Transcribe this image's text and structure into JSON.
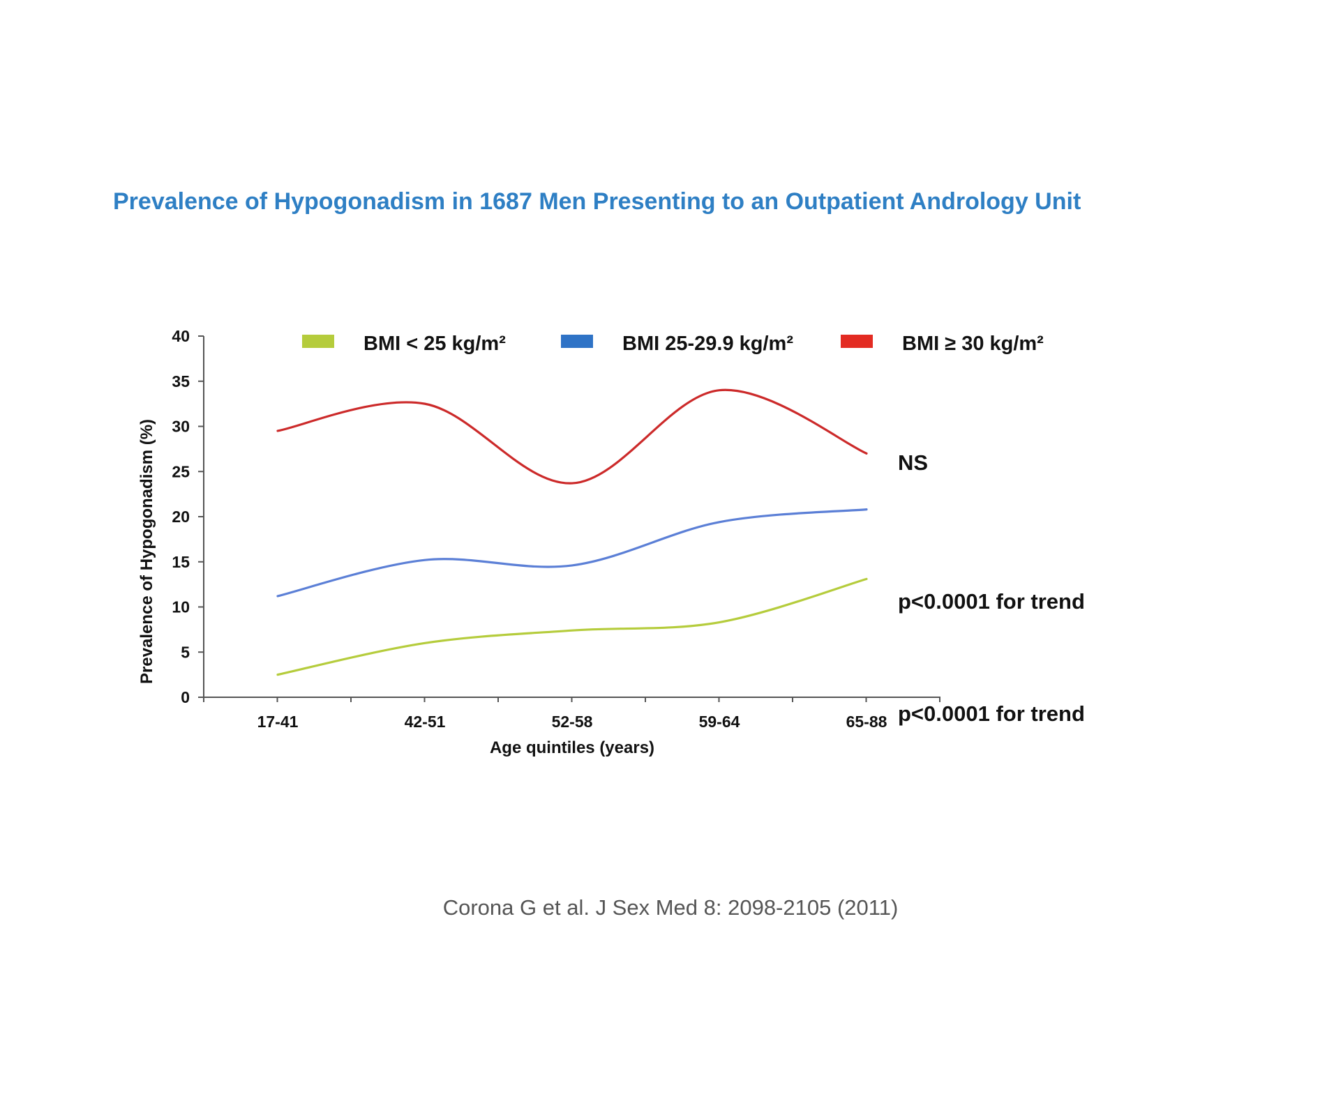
{
  "slide": {
    "title": "Prevalence of Hypogonadism in 1687 Men Presenting to an Outpatient Andrology Unit",
    "title_color": "#2e7fc4",
    "citation": "Corona G et al. J Sex Med 8: 2098-2105 (2011)"
  },
  "chart_data": {
    "type": "line",
    "title": "",
    "xlabel": "Age quintiles (years)",
    "ylabel": "Prevalence of Hypogonadism (%)",
    "categories": [
      "17-41",
      "42-51",
      "52-58",
      "59-64",
      "65-88"
    ],
    "ylim": [
      0,
      40
    ],
    "yticks": [
      "0",
      "5",
      "10",
      "15",
      "20",
      "25",
      "30",
      "35",
      "40"
    ],
    "grid": false,
    "legend_position": "top",
    "series": [
      {
        "name": "BMI < 25 kg/m²",
        "color": "#b5cc3c",
        "values": [
          2.5,
          6.0,
          7.4,
          8.3,
          13.1
        ]
      },
      {
        "name": "BMI 25-29.9 kg/m²",
        "color": "#5b7fd6",
        "legend_color": "#2f73c6",
        "values": [
          11.2,
          15.2,
          14.6,
          19.4,
          20.8
        ]
      },
      {
        "name": "BMI ≥ 30 kg/m²",
        "color": "#cc2a2a",
        "legend_color": "#e32b22",
        "values": [
          29.5,
          32.5,
          23.7,
          34.0,
          27.0
        ]
      }
    ],
    "annotations": [
      {
        "text": "NS",
        "series": "BMI ≥ 30 kg/m²"
      },
      {
        "text": "p<0.0001 for trend",
        "series": "BMI 25-29.9 kg/m²"
      },
      {
        "text": "p<0.0001 for trend",
        "series": "BMI < 25 kg/m²"
      }
    ]
  }
}
